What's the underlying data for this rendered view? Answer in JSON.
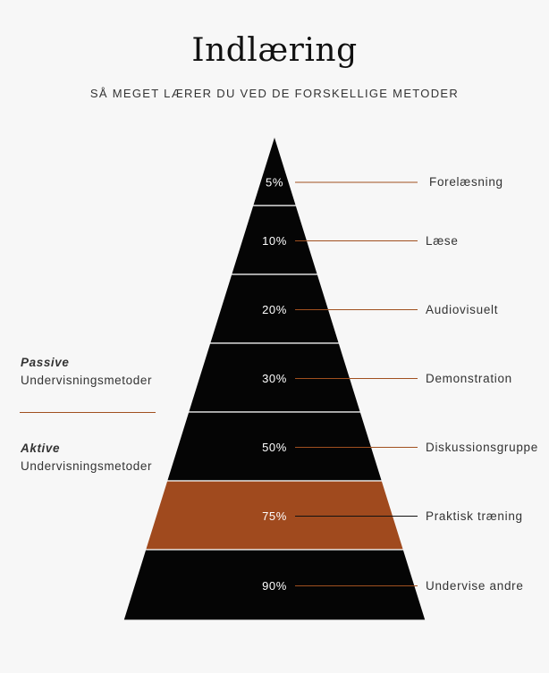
{
  "title": "Indlæring",
  "subtitle": "SÅ MEGET LÆRER DU VED DE FORSKELLIGE METODER",
  "groups": {
    "passive": {
      "emphasis": "Passive",
      "description": "Undervisningsmetoder"
    },
    "active": {
      "emphasis": "Aktive",
      "description": "Undervisningsmetoder"
    }
  },
  "colors": {
    "tier": "#050505",
    "highlight": "#a04a1e",
    "connector": "#a0501f",
    "highlight_connector": "#111111"
  },
  "levels": [
    {
      "percent": "5%",
      "label": "Forelæsning",
      "highlight": false
    },
    {
      "percent": "10%",
      "label": "Læse",
      "highlight": false
    },
    {
      "percent": "20%",
      "label": "Audiovisuelt",
      "highlight": false
    },
    {
      "percent": "30%",
      "label": "Demonstration",
      "highlight": false
    },
    {
      "percent": "50%",
      "label": "Diskussionsgruppe",
      "highlight": false
    },
    {
      "percent": "75%",
      "label": "Praktisk træning",
      "highlight": true
    },
    {
      "percent": "90%",
      "label": "Undervise andre",
      "highlight": false
    }
  ]
}
